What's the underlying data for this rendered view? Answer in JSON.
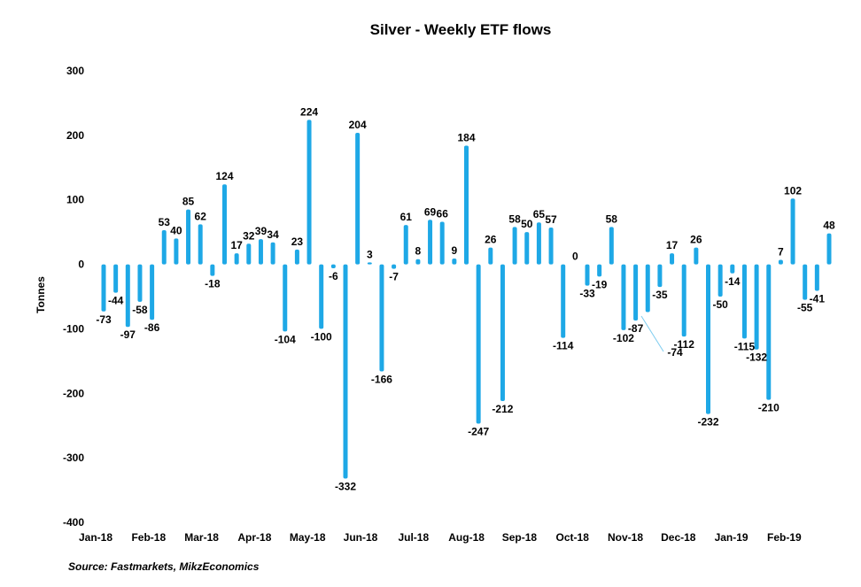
{
  "chart_data": {
    "type": "bar",
    "title": "Silver - Weekly ETF flows",
    "ylabel": "Tonnes",
    "xlabel": "",
    "ylim": [
      -400,
      300
    ],
    "yticks": [
      300,
      200,
      100,
      0,
      -100,
      -200,
      -300,
      -400
    ],
    "month_labels": [
      "Jan-18",
      "Feb-18",
      "Mar-18",
      "Apr-18",
      "May-18",
      "Jun-18",
      "Jul-18",
      "Aug-18",
      "Sep-18",
      "Oct-18",
      "Nov-18",
      "Dec-18",
      "Jan-19",
      "Feb-19"
    ],
    "values": [
      -73,
      -44,
      -97,
      -58,
      -86,
      53,
      40,
      85,
      62,
      -18,
      124,
      17,
      32,
      39,
      34,
      -104,
      23,
      224,
      -100,
      -6,
      -332,
      204,
      3,
      -166,
      -7,
      61,
      8,
      69,
      66,
      9,
      184,
      -247,
      26,
      -212,
      58,
      50,
      65,
      57,
      -114,
      0,
      -33,
      -19,
      58,
      -102,
      -87,
      -74,
      -35,
      17,
      -112,
      26,
      -232,
      -50,
      -14,
      -115,
      -132,
      -210,
      7,
      102,
      -55,
      -41,
      48
    ],
    "grid": false,
    "legend": "none",
    "bar_color": "#1ea8e6"
  },
  "source": "Source: Fastmarkets, MikzEconomics"
}
